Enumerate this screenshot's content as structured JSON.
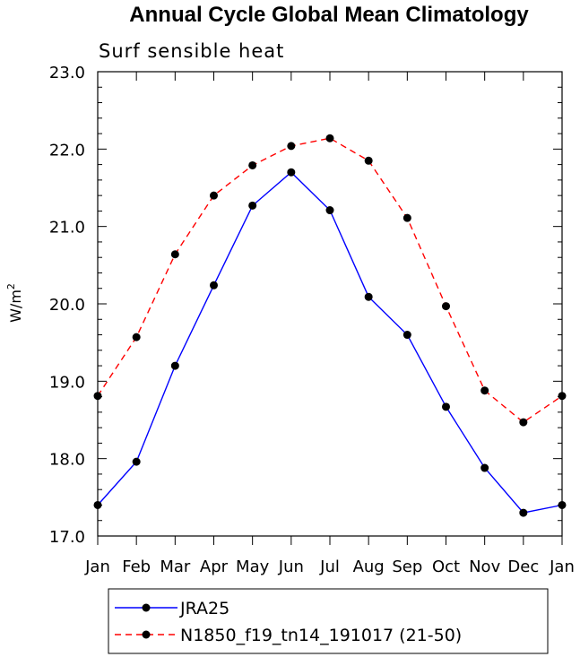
{
  "chart_data": {
    "type": "line",
    "title": "Annual Cycle Global Mean Climatology",
    "subtitle": "Surf sensible heat",
    "ylabel_base": "W/m",
    "ylabel_sup": "2",
    "xlabel": "",
    "categories": [
      "Jan",
      "Feb",
      "Mar",
      "Apr",
      "May",
      "Jun",
      "Jul",
      "Aug",
      "Sep",
      "Oct",
      "Nov",
      "Dec",
      "Jan"
    ],
    "ylim": [
      17.0,
      23.0
    ],
    "yticks": [
      "17.0",
      "18.0",
      "19.0",
      "20.0",
      "21.0",
      "22.0",
      "23.0"
    ],
    "series": [
      {
        "name": "JRA25",
        "color": "#0000ff",
        "dash": "solid",
        "values": [
          17.4,
          17.96,
          19.2,
          20.24,
          21.27,
          21.7,
          21.21,
          20.09,
          19.6,
          18.67,
          17.88,
          17.3,
          17.4
        ]
      },
      {
        "name": "N1850_f19_tn14_191017 (21-50)",
        "color": "#ff0000",
        "dash": "dashed",
        "values": [
          18.81,
          19.57,
          20.64,
          21.4,
          21.79,
          22.04,
          22.14,
          21.85,
          21.11,
          19.97,
          18.88,
          18.47,
          18.81
        ]
      }
    ],
    "legend_position": "bottom"
  }
}
